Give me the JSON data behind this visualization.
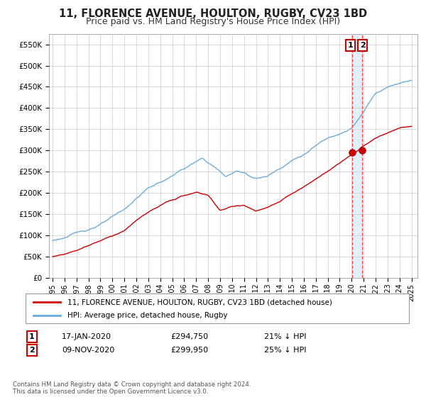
{
  "title": "11, FLORENCE AVENUE, HOULTON, RUGBY, CV23 1BD",
  "subtitle": "Price paid vs. HM Land Registry's House Price Index (HPI)",
  "ylabel_ticks": [
    "£0",
    "£50K",
    "£100K",
    "£150K",
    "£200K",
    "£250K",
    "£300K",
    "£350K",
    "£400K",
    "£450K",
    "£500K",
    "£550K"
  ],
  "ytick_values": [
    0,
    50000,
    100000,
    150000,
    200000,
    250000,
    300000,
    350000,
    400000,
    450000,
    500000,
    550000
  ],
  "ylim": [
    0,
    575000
  ],
  "xlim_start": 1994.7,
  "xlim_end": 2025.5,
  "xtick_years": [
    1995,
    1996,
    1997,
    1998,
    1999,
    2000,
    2001,
    2002,
    2003,
    2004,
    2005,
    2006,
    2007,
    2008,
    2009,
    2010,
    2011,
    2012,
    2013,
    2014,
    2015,
    2016,
    2017,
    2018,
    2019,
    2020,
    2021,
    2022,
    2023,
    2024,
    2025
  ],
  "hpi_color": "#6aaddf",
  "price_color": "#cc0000",
  "vline1_x": 2020.04,
  "vline2_x": 2020.87,
  "shade_color": "#ddeeff",
  "sale1_x": 2020.04,
  "sale1_y": 294750,
  "sale2_x": 2020.87,
  "sale2_y": 299950,
  "marker_color": "#cc0000",
  "legend_label1": "11, FLORENCE AVENUE, HOULTON, RUGBY, CV23 1BD (detached house)",
  "legend_label2": "HPI: Average price, detached house, Rugby",
  "annotation1_num": "1",
  "annotation1_date": "17-JAN-2020",
  "annotation1_price": "£294,750",
  "annotation1_hpi": "21% ↓ HPI",
  "annotation2_num": "2",
  "annotation2_date": "09-NOV-2020",
  "annotation2_price": "£299,950",
  "annotation2_hpi": "25% ↓ HPI",
  "footnote": "Contains HM Land Registry data © Crown copyright and database right 2024.\nThis data is licensed under the Open Government Licence v3.0.",
  "bg_color": "#ffffff",
  "grid_color": "#cccccc",
  "title_fontsize": 10.5,
  "subtitle_fontsize": 9
}
